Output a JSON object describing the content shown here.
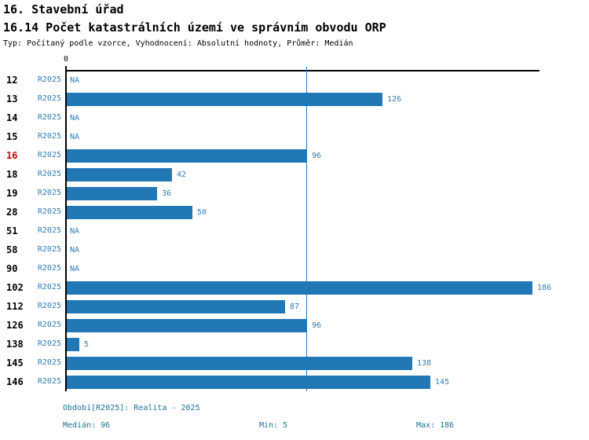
{
  "header": {
    "title": "16. Stavební úřad",
    "subtitle": "16.14 Počet katastrálních území ve správním obvodu ORP",
    "meta": "Typ: Počítaný podle vzorce, Vyhodnocení: Absolutní hodnoty, Průměr: Medián"
  },
  "chart_data": {
    "type": "bar",
    "orientation": "horizontal",
    "title": "16.14 Počet katastrálních území ve správním obvodu ORP",
    "series_label": "R2025",
    "na_label": "NA",
    "highlighted_category": "16",
    "categories": [
      "12",
      "13",
      "14",
      "15",
      "16",
      "18",
      "19",
      "28",
      "51",
      "58",
      "90",
      "102",
      "112",
      "126",
      "138",
      "145",
      "146"
    ],
    "values": [
      null,
      126,
      null,
      null,
      96,
      42,
      36,
      50,
      null,
      null,
      null,
      186,
      87,
      96,
      5,
      138,
      145
    ],
    "axis": {
      "zero_label": "0",
      "range_min": 0,
      "range_max": 189
    },
    "median": 96,
    "min": 5,
    "max": 186,
    "grid": false,
    "legend_position": "none"
  },
  "footer": {
    "period": "Období[R2025]: Realita - 2025",
    "median_text": "Medián: 96",
    "min_text": "Min: 5",
    "max_text": "Max: 186"
  },
  "colors": {
    "bar": "#2278b5",
    "blue-text": "#2f7db8",
    "footer-text": "#1b7094",
    "highlight": "#d40000",
    "axis": "#000000"
  }
}
